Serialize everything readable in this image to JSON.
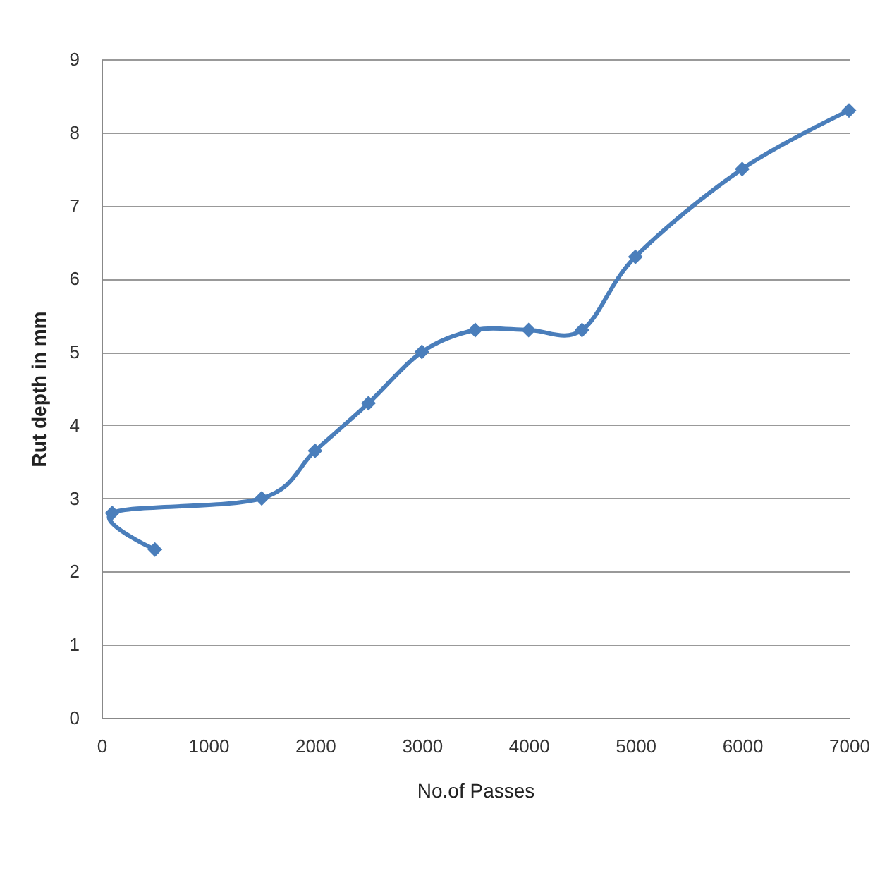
{
  "chart_data": {
    "type": "line",
    "xlabel": "No.of Passes",
    "ylabel": "Rut depth in mm",
    "x": [
      500,
      100,
      1500,
      2000,
      2500,
      3000,
      3500,
      4000,
      4500,
      5000,
      6000,
      7000
    ],
    "series": [
      {
        "color": "#4a7ebb",
        "values": [
          2.3,
          2.8,
          3.0,
          3.65,
          4.3,
          5.0,
          5.3,
          5.3,
          5.3,
          6.3,
          7.5,
          8.3
        ]
      }
    ],
    "xlim": [
      0,
      7000
    ],
    "xticks": [
      0,
      1000,
      2000,
      3000,
      4000,
      5000,
      6000,
      7000
    ],
    "ylim": [
      0,
      9
    ],
    "yticks": [
      0,
      1,
      2,
      3,
      4,
      5,
      6,
      7,
      8,
      9
    ],
    "grid": "y",
    "marker": "diamond",
    "line_style": "solid"
  }
}
